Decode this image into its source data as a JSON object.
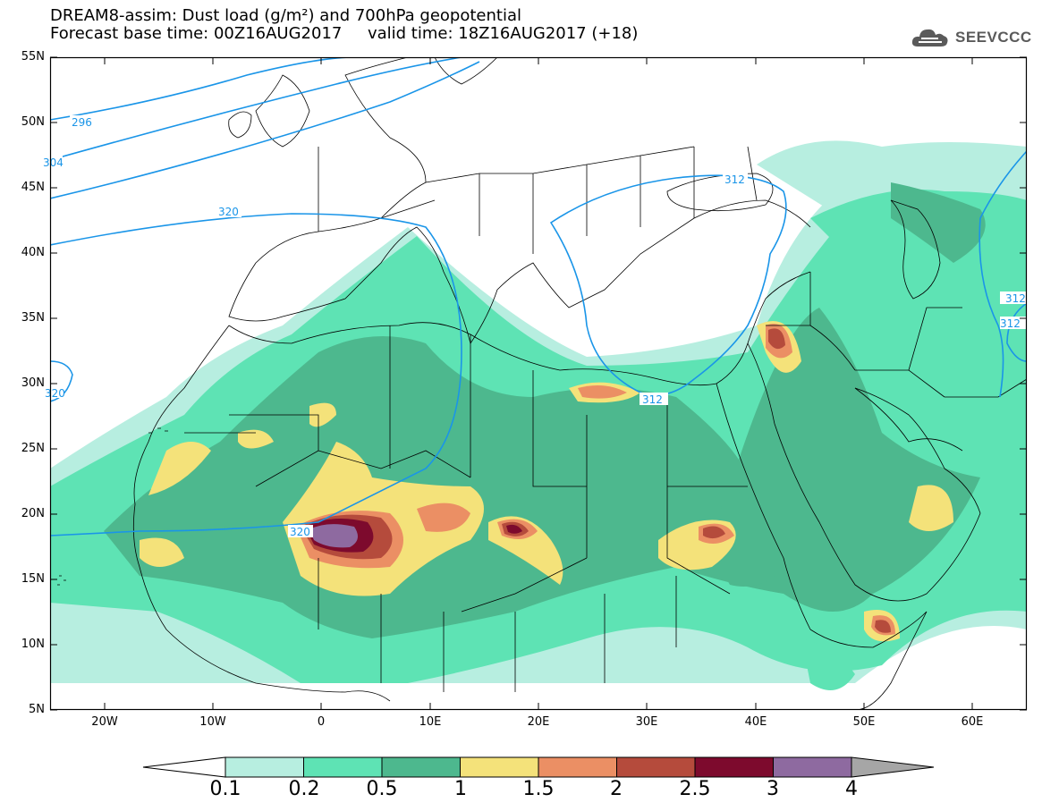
{
  "title": {
    "line1": "DREAM8-assim: Dust load (g/m²) and 700hPa geopotential",
    "line2": "Forecast base time: 00Z16AUG2017     valid time: 18Z16AUG2017 (+18)"
  },
  "brand": {
    "name": "SEEVCCC",
    "icon": "cloud-icon"
  },
  "axes": {
    "lat_labels": [
      "55N",
      "50N",
      "45N",
      "40N",
      "35N",
      "30N",
      "25N",
      "20N",
      "15N",
      "10N",
      "5N"
    ],
    "lon_labels": [
      "20W",
      "10W",
      "0",
      "10E",
      "20E",
      "30E",
      "40E",
      "50E",
      "60E"
    ],
    "lat_range": [
      5,
      55
    ],
    "lon_range": [
      -25,
      65
    ]
  },
  "contour_labels": [
    "296",
    "304",
    "320",
    "320",
    "320",
    "312",
    "312",
    "312",
    "312"
  ],
  "colorbar": {
    "levels": [
      "0.1",
      "0.2",
      "0.5",
      "1",
      "1.5",
      "2",
      "2.5",
      "3",
      "4"
    ],
    "colors": [
      "#ffffff",
      "#b7eee0",
      "#5ee3b4",
      "#4db88e",
      "#f4e27a",
      "#eb8f64",
      "#b54b3c",
      "#7d0a2d",
      "#8e6aa0",
      "#a6a6a6"
    ]
  },
  "colors": {
    "geopotential_line": "#1a95e8",
    "coast": "#000000"
  }
}
